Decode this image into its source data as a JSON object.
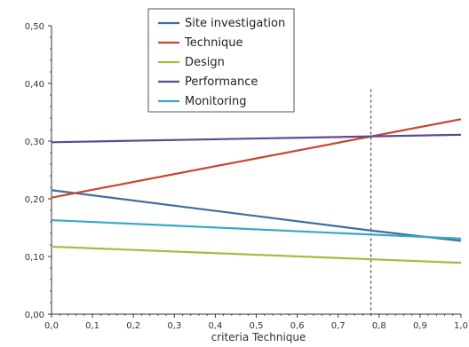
{
  "chart_data": {
    "type": "line",
    "title": "",
    "xlabel": "criteria Technique",
    "ylabel": "",
    "xlim": [
      0.0,
      1.0
    ],
    "ylim": [
      0.0,
      0.5
    ],
    "x_ticks": [
      "0,0",
      "0,1",
      "0,2",
      "0,3",
      "0,4",
      "0,5",
      "0,6",
      "0,7",
      "0,8",
      "0,9",
      "1,0"
    ],
    "y_ticks": [
      "0,00",
      "0,10",
      "0,20",
      "0,30",
      "0,40",
      "0,50"
    ],
    "x_tick_values": [
      0.0,
      0.1,
      0.2,
      0.3,
      0.4,
      0.5,
      0.6,
      0.7,
      0.8,
      0.9,
      1.0
    ],
    "y_tick_values": [
      0.0,
      0.1,
      0.2,
      0.3,
      0.4,
      0.5
    ],
    "reference_line_x": 0.78,
    "legend_position": "top-center",
    "grid": false,
    "series": [
      {
        "name": "Site investigation",
        "color": "#3a6fa0",
        "x": [
          0.0,
          0.78,
          1.0
        ],
        "y": [
          0.215,
          0.145,
          0.127
        ]
      },
      {
        "name": "Technique",
        "color": "#c8462f",
        "x": [
          0.0,
          1.0
        ],
        "y": [
          0.202,
          0.338
        ]
      },
      {
        "name": "Design",
        "color": "#9bbf42",
        "x": [
          0.0,
          1.0
        ],
        "y": [
          0.117,
          0.089
        ]
      },
      {
        "name": "Performance",
        "color": "#5c4a92",
        "x": [
          0.0,
          1.0
        ],
        "y": [
          0.298,
          0.311
        ]
      },
      {
        "name": "Monitoring",
        "color": "#3aa7c4",
        "x": [
          0.0,
          1.0
        ],
        "y": [
          0.163,
          0.131
        ]
      }
    ]
  }
}
